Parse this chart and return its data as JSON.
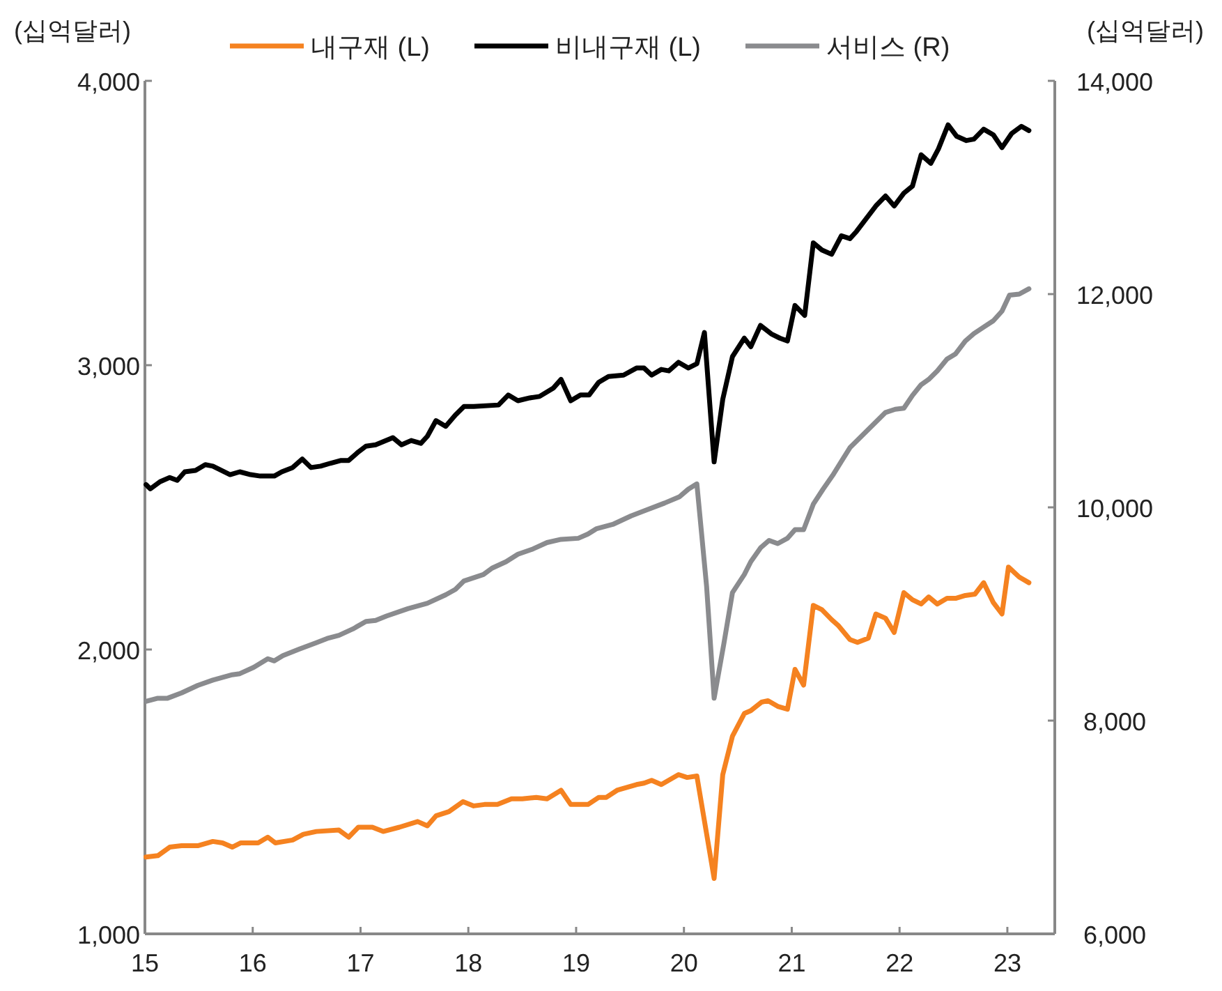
{
  "chart_data": {
    "type": "line",
    "ylabel": "(십억달러)",
    "y2label": "(십억달러)",
    "xlim": [
      15,
      23.44
    ],
    "xticks": [
      15,
      16,
      17,
      18,
      19,
      20,
      21,
      22,
      23
    ],
    "ylim": [
      1000,
      4000
    ],
    "yticks": [
      {
        "value": 1000,
        "label": "1,000"
      },
      {
        "value": 2000,
        "label": "2,000"
      },
      {
        "value": 3000,
        "label": "3,000"
      },
      {
        "value": 4000,
        "label": "4,000"
      }
    ],
    "y2lim": [
      6000,
      14000
    ],
    "y2ticks": [
      {
        "value": 6000,
        "label": "6,000"
      },
      {
        "value": 8000,
        "label": "8,000"
      },
      {
        "value": 10000,
        "label": "10,000"
      },
      {
        "value": 12000,
        "label": "12,000"
      },
      {
        "value": 14000,
        "label": "14,000"
      }
    ],
    "legend": "top",
    "grid": false,
    "marker": "none",
    "line_style": "solid",
    "series": [
      {
        "name": "내구재 (L)",
        "color": "#f58220",
        "x": [
          15.01,
          15.12,
          15.23,
          15.34,
          15.49,
          15.63,
          15.72,
          15.81,
          15.89,
          16.05,
          16.14,
          16.21,
          16.37,
          16.47,
          16.59,
          16.8,
          16.89,
          16.98,
          17.11,
          17.21,
          17.36,
          17.53,
          17.62,
          17.7,
          17.82,
          17.95,
          18.05,
          18.15,
          18.27,
          18.4,
          18.5,
          18.63,
          18.73,
          18.86,
          18.95,
          19.11,
          19.21,
          19.28,
          19.38,
          19.56,
          19.63,
          19.7,
          19.79,
          19.95,
          20.03,
          20.12,
          20.28,
          20.36,
          20.45,
          20.56,
          20.62,
          20.72,
          20.78,
          20.87,
          20.96,
          21.03,
          21.11,
          21.2,
          21.28,
          21.37,
          21.43,
          21.54,
          21.61,
          21.71,
          21.78,
          21.87,
          21.95,
          22.04,
          22.12,
          22.2,
          22.27,
          22.35,
          22.44,
          22.52,
          22.61,
          22.7,
          22.78,
          22.87,
          22.95,
          23.01,
          23.11,
          23.2
        ],
        "values": [
          1270,
          1275,
          1305,
          1310,
          1310,
          1325,
          1320,
          1305,
          1320,
          1320,
          1340,
          1320,
          1330,
          1350,
          1360,
          1365,
          1340,
          1375,
          1375,
          1360,
          1375,
          1395,
          1380,
          1415,
          1430,
          1465,
          1450,
          1455,
          1455,
          1475,
          1475,
          1480,
          1475,
          1505,
          1455,
          1455,
          1480,
          1480,
          1505,
          1525,
          1530,
          1540,
          1525,
          1560,
          1550,
          1555,
          1195,
          1560,
          1695,
          1775,
          1785,
          1815,
          1820,
          1800,
          1790,
          1930,
          1875,
          2155,
          2140,
          2105,
          2085,
          2035,
          2025,
          2040,
          2125,
          2110,
          2060,
          2200,
          2175,
          2160,
          2185,
          2160,
          2180,
          2180,
          2190,
          2195,
          2235,
          2165,
          2125,
          2290,
          2255,
          2235
        ]
      },
      {
        "name": "비내구재 (L)",
        "color": "#000000",
        "x": [
          15.01,
          15.05,
          15.14,
          15.23,
          15.3,
          15.37,
          15.47,
          15.56,
          15.63,
          15.79,
          15.88,
          15.98,
          16.07,
          16.2,
          16.27,
          16.37,
          16.46,
          16.54,
          16.63,
          16.72,
          16.82,
          16.89,
          16.98,
          17.05,
          17.14,
          17.3,
          17.38,
          17.47,
          17.56,
          17.62,
          17.7,
          17.79,
          17.88,
          17.96,
          18.05,
          18.28,
          18.37,
          18.46,
          18.57,
          18.66,
          18.79,
          18.86,
          18.95,
          19.04,
          19.12,
          19.21,
          19.3,
          19.44,
          19.56,
          19.63,
          19.7,
          19.79,
          19.86,
          19.95,
          20.04,
          20.12,
          20.19,
          20.28,
          20.36,
          20.45,
          20.56,
          20.62,
          20.71,
          20.81,
          20.89,
          20.96,
          21.03,
          21.12,
          21.2,
          21.28,
          21.37,
          21.46,
          21.54,
          21.6,
          21.68,
          21.78,
          21.87,
          21.95,
          22.04,
          22.12,
          22.2,
          22.29,
          22.36,
          22.45,
          22.53,
          22.62,
          22.69,
          22.78,
          22.87,
          22.95,
          23.04,
          23.13,
          23.2
        ],
        "values": [
          2580,
          2565,
          2590,
          2605,
          2595,
          2625,
          2630,
          2650,
          2645,
          2615,
          2625,
          2615,
          2610,
          2610,
          2625,
          2640,
          2670,
          2640,
          2645,
          2655,
          2665,
          2665,
          2695,
          2715,
          2720,
          2745,
          2720,
          2735,
          2725,
          2750,
          2805,
          2785,
          2825,
          2855,
          2855,
          2860,
          2895,
          2875,
          2885,
          2890,
          2920,
          2950,
          2875,
          2895,
          2895,
          2940,
          2960,
          2965,
          2990,
          2990,
          2965,
          2985,
          2980,
          3010,
          2990,
          3005,
          3115,
          2660,
          2880,
          3030,
          3095,
          3065,
          3140,
          3110,
          3095,
          3085,
          3210,
          3175,
          3430,
          3405,
          3390,
          3455,
          3445,
          3470,
          3510,
          3560,
          3595,
          3560,
          3605,
          3630,
          3740,
          3710,
          3760,
          3845,
          3805,
          3790,
          3795,
          3830,
          3810,
          3765,
          3815,
          3840,
          3825
        ]
      },
      {
        "name": "서비스 (R)",
        "color": "#8a8b8e",
        "axis": "y2",
        "x": [
          15.01,
          15.12,
          15.21,
          15.34,
          15.49,
          15.63,
          15.81,
          15.88,
          16.01,
          16.14,
          16.2,
          16.28,
          16.43,
          16.59,
          16.69,
          16.8,
          16.93,
          17.05,
          17.14,
          17.24,
          17.44,
          17.62,
          17.79,
          17.88,
          17.96,
          18.14,
          18.22,
          18.35,
          18.46,
          18.6,
          18.73,
          18.86,
          19.02,
          19.11,
          19.19,
          19.34,
          19.51,
          19.64,
          19.82,
          19.96,
          20.04,
          20.12,
          20.21,
          20.28,
          20.37,
          20.45,
          20.56,
          20.62,
          20.71,
          20.79,
          20.87,
          20.96,
          21.03,
          21.11,
          21.2,
          21.29,
          21.38,
          21.46,
          21.54,
          21.63,
          21.71,
          21.8,
          21.87,
          21.96,
          22.04,
          22.12,
          22.2,
          22.27,
          22.35,
          22.44,
          22.52,
          22.61,
          22.69,
          22.78,
          22.87,
          22.95,
          23.02,
          23.11,
          23.2
        ],
        "values": [
          8180,
          8210,
          8210,
          8260,
          8330,
          8380,
          8430,
          8440,
          8500,
          8580,
          8560,
          8610,
          8670,
          8730,
          8770,
          8800,
          8860,
          8930,
          8940,
          8980,
          9050,
          9100,
          9180,
          9230,
          9310,
          9370,
          9430,
          9490,
          9560,
          9610,
          9670,
          9700,
          9710,
          9750,
          9800,
          9840,
          9920,
          9970,
          10040,
          10100,
          10170,
          10220,
          9260,
          8210,
          8720,
          9200,
          9370,
          9490,
          9620,
          9690,
          9660,
          9710,
          9790,
          9790,
          10030,
          10170,
          10300,
          10430,
          10560,
          10650,
          10730,
          10820,
          10890,
          10920,
          10930,
          11050,
          11150,
          11200,
          11280,
          11390,
          11440,
          11560,
          11630,
          11690,
          11750,
          11840,
          11990,
          12000,
          12050
        ]
      }
    ]
  }
}
